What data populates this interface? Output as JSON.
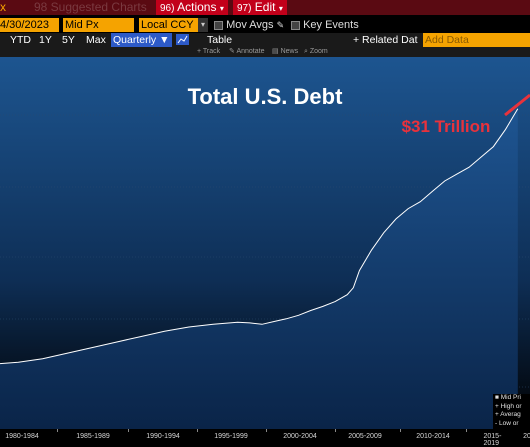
{
  "menubar": {
    "field_fragment": "x",
    "suggested": "98 Suggested Charts",
    "actions_num": "96)",
    "actions": "Actions",
    "edit_num": "97)",
    "edit": "Edit"
  },
  "toolbar": {
    "date": "4/30/2023",
    "price_field": "Mid Px",
    "currency": "Local CCY",
    "mov_avgs": "Mov Avgs",
    "key_events": "Key Events"
  },
  "periods": {
    "ytd": "YTD",
    "y1": "1Y",
    "y5": "5Y",
    "max": "Max",
    "frequency": "Quarterly ▼",
    "table": "Table",
    "related": "+ Related Dat",
    "add_data": "Add Data"
  },
  "tools": {
    "track": "Track",
    "annotate": "Annotate",
    "news": "News",
    "zoom": "Zoom"
  },
  "chart_title": "Total U.S. Debt",
  "annotation": "$31 Trillion",
  "x_ticks": [
    "1980-1984",
    "1985-1989",
    "1990-1994",
    "1995-1999",
    "2000-2004",
    "2005-2009",
    "2010-2014",
    "2015-2019",
    "20"
  ],
  "legend": [
    "Mid Pri",
    "High or",
    "Averag",
    "Low or"
  ],
  "colors": {
    "orange": "#f5a300",
    "menu_red": "#5a0a12",
    "annotation_red": "#e8323c",
    "line": "#ffffff"
  },
  "chart_data": {
    "type": "area",
    "title": "Total U.S. Debt",
    "x": [
      1979.5,
      1981,
      1983,
      1985,
      1987,
      1989,
      1991,
      1993,
      1995,
      1997,
      1999,
      2000,
      2001,
      2002,
      2003,
      2004,
      2005,
      2006,
      2007,
      2008,
      2008.5,
      2009,
      2010,
      2011,
      2012,
      2013,
      2014,
      2015,
      2016,
      2017,
      2018,
      2019,
      2020,
      2021,
      2021.5,
      2022
    ],
    "y": [
      9.5,
      9.7,
      10.2,
      11.0,
      11.8,
      12.6,
      13.4,
      14.2,
      14.8,
      15.2,
      15.5,
      15.4,
      15.2,
      15.6,
      16.0,
      16.5,
      17.2,
      17.8,
      18.5,
      19.5,
      20.5,
      23.0,
      26.0,
      28.5,
      30.5,
      32.0,
      33.0,
      34.5,
      36.0,
      37.0,
      38.0,
      39.5,
      41.0,
      43.5,
      45.0,
      46.5
    ],
    "annotation_label": "$31 Trillion",
    "xlim": [
      1979.5,
      2023
    ]
  }
}
